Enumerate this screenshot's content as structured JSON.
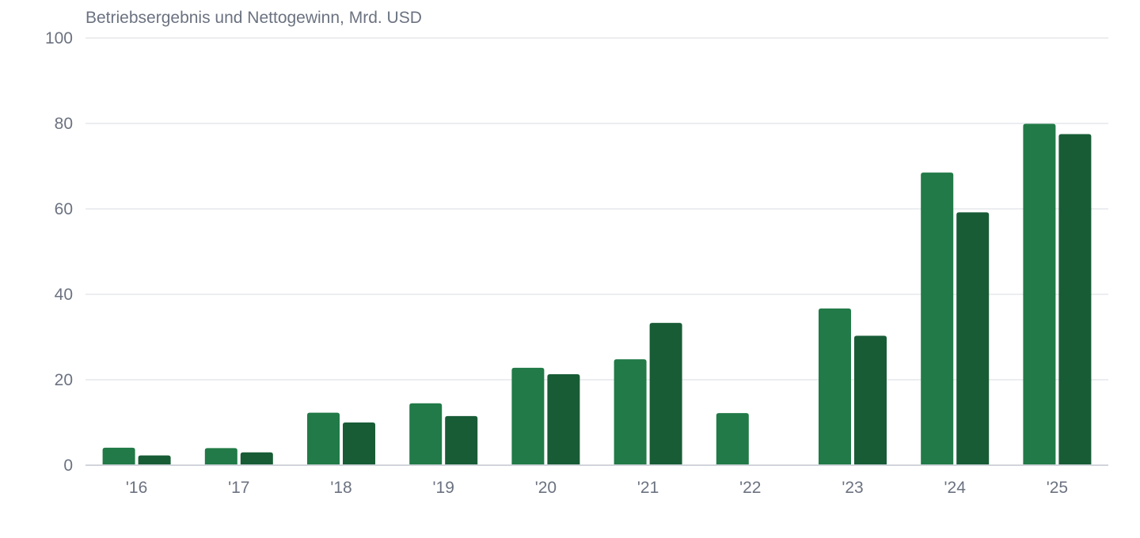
{
  "chart_data": {
    "type": "bar",
    "title": "Betriebsergebnis und Nettogewinn, Mrd. USD",
    "xlabel": "",
    "ylabel": "",
    "categories": [
      "'16",
      "'17",
      "'18",
      "'19",
      "'20",
      "'21",
      "'22",
      "'23",
      "'24",
      "'25"
    ],
    "series": [
      {
        "values": [
          4.1,
          4.0,
          12.3,
          14.5,
          22.8,
          24.8,
          12.2,
          36.7,
          68.5,
          79.9
        ],
        "color": "#217a47"
      },
      {
        "values": [
          2.3,
          3.0,
          10.0,
          11.5,
          21.3,
          33.3,
          0,
          30.3,
          59.2,
          77.5
        ],
        "color": "#185c36"
      }
    ],
    "ylim": [
      0,
      100
    ],
    "yticks": [
      0,
      20,
      40,
      60,
      80,
      100
    ],
    "grid": true,
    "legend": "none",
    "colors": {
      "grid": "#e5e7eb",
      "axis": "#d1d5db",
      "text": "#6b7280"
    }
  }
}
